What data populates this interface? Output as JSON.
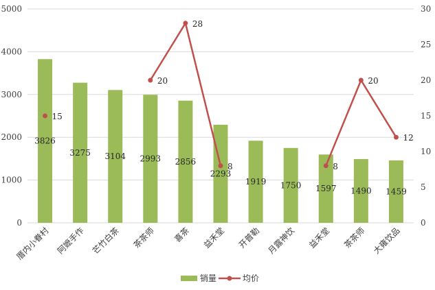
{
  "chart_data": {
    "type": "bar",
    "categories": [
      "厝内小眷村",
      "阿嬷手作",
      "芒竹白茶",
      "茶茶师",
      "喜茶",
      "益禾堂",
      "开普勒",
      "月露神饮",
      "益禾堂",
      "茶茶师",
      "大雍饮品"
    ],
    "series": [
      {
        "name": "销量",
        "type": "bar",
        "axis": "left",
        "values": [
          3826,
          3275,
          3104,
          2993,
          2856,
          2293,
          1919,
          1750,
          1597,
          1490,
          1459
        ],
        "color": "#9BBB59"
      },
      {
        "name": "均价",
        "type": "line",
        "axis": "right",
        "values": [
          15,
          null,
          null,
          20,
          28,
          8,
          null,
          null,
          8,
          20,
          12
        ],
        "color": "#C0504D"
      }
    ],
    "y_left": {
      "min": 0,
      "max": 5000,
      "step": 1000,
      "ticks": [
        "0",
        "1000",
        "2000",
        "3000",
        "4000",
        "5000"
      ]
    },
    "y_right": {
      "min": 0,
      "max": 30,
      "step": 5,
      "ticks": [
        "0",
        "5",
        "10",
        "15",
        "20",
        "25",
        "30"
      ]
    },
    "grid": true,
    "legend_position": "bottom"
  }
}
